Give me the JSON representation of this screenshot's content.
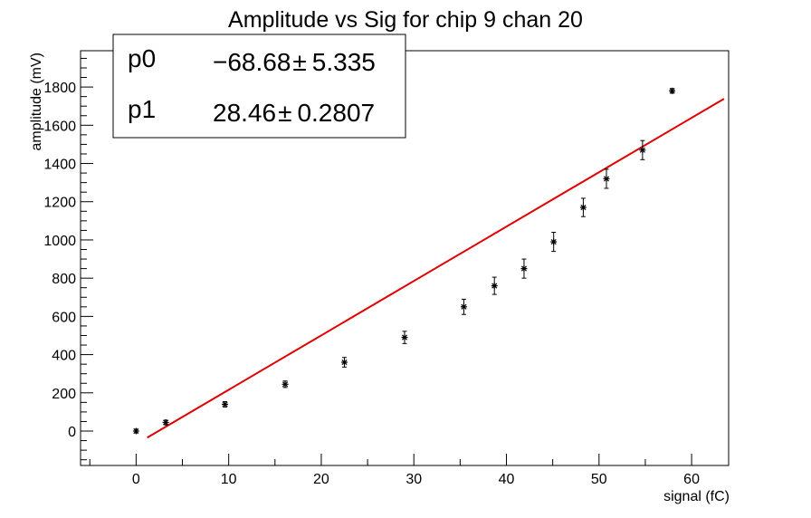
{
  "chart_data": {
    "type": "scatter",
    "title": "Amplitude vs Sig for chip 9 chan 20",
    "xlabel": "signal (fC)",
    "ylabel": "amplitude (mV)",
    "xlim": [
      -6,
      64
    ],
    "ylim": [
      -180,
      1990
    ],
    "x_ticks": [
      0,
      10,
      20,
      30,
      40,
      50,
      60
    ],
    "y_ticks": [
      0,
      200,
      400,
      600,
      800,
      1000,
      1200,
      1400,
      1600,
      1800
    ],
    "grid": false,
    "series": [
      {
        "style": "points-with-errorbars",
        "color": "#000000",
        "points": [
          {
            "x": 0.0,
            "y": 0,
            "err": 10
          },
          {
            "x": 3.2,
            "y": 45,
            "err": 12
          },
          {
            "x": 9.6,
            "y": 140,
            "err": 14
          },
          {
            "x": 16.1,
            "y": 245,
            "err": 17
          },
          {
            "x": 22.5,
            "y": 360,
            "err": 25
          },
          {
            "x": 29.0,
            "y": 490,
            "err": 32
          },
          {
            "x": 35.4,
            "y": 650,
            "err": 40
          },
          {
            "x": 38.7,
            "y": 760,
            "err": 45
          },
          {
            "x": 41.9,
            "y": 850,
            "err": 50
          },
          {
            "x": 45.1,
            "y": 990,
            "err": 50
          },
          {
            "x": 48.3,
            "y": 1170,
            "err": 48
          },
          {
            "x": 50.8,
            "y": 1320,
            "err": 50
          },
          {
            "x": 54.7,
            "y": 1470,
            "err": 50
          },
          {
            "x": 57.9,
            "y": 1780,
            "err": 12
          }
        ]
      },
      {
        "style": "fit-line",
        "color": "#e00000",
        "x": [
          1.2,
          63.5
        ],
        "intercept": -68.68,
        "slope": 28.46
      }
    ],
    "stats_box": {
      "rows": [
        {
          "name": "p0",
          "value": "−68.68",
          "pm": "±",
          "error": "5.335"
        },
        {
          "name": "p1",
          "value": "28.46",
          "pm": "±",
          "error": "0.2807"
        }
      ],
      "placement": "top-left"
    }
  }
}
